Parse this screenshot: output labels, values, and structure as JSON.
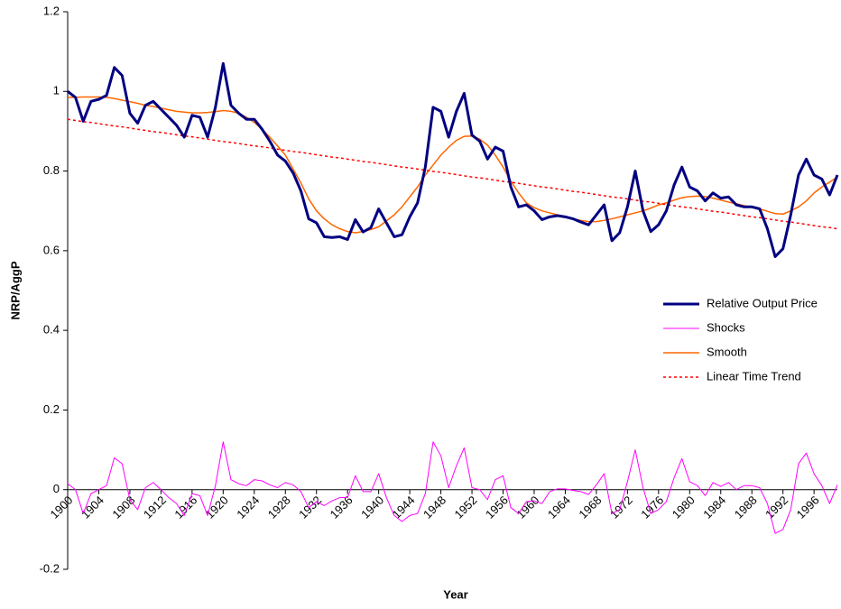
{
  "chart_data": {
    "type": "line",
    "x_label": "Year",
    "y_label": "NRP/AggP",
    "x": [
      1900,
      1901,
      1902,
      1903,
      1904,
      1905,
      1906,
      1907,
      1908,
      1909,
      1910,
      1911,
      1912,
      1913,
      1914,
      1915,
      1916,
      1917,
      1918,
      1919,
      1920,
      1921,
      1922,
      1923,
      1924,
      1925,
      1926,
      1927,
      1928,
      1929,
      1930,
      1931,
      1932,
      1933,
      1934,
      1935,
      1936,
      1937,
      1938,
      1939,
      1940,
      1941,
      1942,
      1943,
      1944,
      1945,
      1946,
      1947,
      1948,
      1949,
      1950,
      1951,
      1952,
      1953,
      1954,
      1955,
      1956,
      1957,
      1958,
      1959,
      1960,
      1961,
      1962,
      1963,
      1964,
      1965,
      1966,
      1967,
      1968,
      1969,
      1970,
      1971,
      1972,
      1973,
      1974,
      1975,
      1976,
      1977,
      1978,
      1979,
      1980,
      1981,
      1982,
      1983,
      1984,
      1985,
      1986,
      1987,
      1988,
      1989,
      1990,
      1991,
      1992,
      1993,
      1994,
      1995,
      1996,
      1997,
      1998,
      1999
    ],
    "xlim": [
      1900,
      1999
    ],
    "xticks": [
      1900,
      1904,
      1908,
      1912,
      1916,
      1920,
      1924,
      1928,
      1932,
      1936,
      1940,
      1944,
      1948,
      1952,
      1956,
      1960,
      1964,
      1968,
      1972,
      1976,
      1980,
      1984,
      1988,
      1992,
      1996
    ],
    "ylim": [
      -0.2,
      1.2
    ],
    "yticks": [
      -0.2,
      0,
      0.2,
      0.4,
      0.6,
      0.8,
      1,
      1.2
    ],
    "grid": false,
    "legend": "right",
    "series": [
      {
        "name": "Relative Output Price",
        "color": "#000080",
        "line_style": "solid",
        "linewidth": 3,
        "values": [
          1.0,
          0.985,
          0.925,
          0.975,
          0.98,
          0.99,
          1.06,
          1.04,
          0.945,
          0.92,
          0.965,
          0.975,
          0.955,
          0.935,
          0.915,
          0.885,
          0.94,
          0.935,
          0.885,
          0.96,
          1.07,
          0.965,
          0.945,
          0.93,
          0.93,
          0.905,
          0.875,
          0.84,
          0.825,
          0.795,
          0.75,
          0.68,
          0.67,
          0.635,
          0.633,
          0.635,
          0.628,
          0.678,
          0.647,
          0.658,
          0.705,
          0.67,
          0.635,
          0.64,
          0.685,
          0.72,
          0.81,
          0.96,
          0.95,
          0.885,
          0.95,
          0.995,
          0.89,
          0.875,
          0.83,
          0.86,
          0.85,
          0.76,
          0.71,
          0.715,
          0.7,
          0.678,
          0.685,
          0.688,
          0.685,
          0.68,
          0.672,
          0.665,
          0.69,
          0.715,
          0.625,
          0.645,
          0.71,
          0.8,
          0.7,
          0.648,
          0.665,
          0.7,
          0.765,
          0.81,
          0.76,
          0.75,
          0.725,
          0.745,
          0.732,
          0.735,
          0.715,
          0.71,
          0.71,
          0.705,
          0.655,
          0.585,
          0.605,
          0.69,
          0.79,
          0.83,
          0.79,
          0.78,
          0.74,
          0.79
        ]
      },
      {
        "name": "Shocks",
        "color": "#ff00ff",
        "line_style": "solid",
        "linewidth": 1,
        "values": [
          0.015,
          0.0,
          -0.06,
          -0.01,
          0.0,
          0.01,
          0.08,
          0.065,
          -0.025,
          -0.05,
          0.005,
          0.018,
          0.0,
          -0.02,
          -0.035,
          -0.065,
          -0.01,
          -0.015,
          -0.065,
          0.01,
          0.12,
          0.025,
          0.015,
          0.01,
          0.025,
          0.022,
          0.012,
          0.005,
          0.018,
          0.012,
          -0.005,
          -0.045,
          -0.03,
          -0.04,
          -0.028,
          -0.02,
          -0.02,
          0.035,
          -0.005,
          -0.005,
          0.04,
          -0.02,
          -0.065,
          -0.08,
          -0.065,
          -0.06,
          -0.01,
          0.12,
          0.085,
          0.005,
          0.06,
          0.105,
          0.005,
          0.0,
          -0.025,
          0.025,
          0.035,
          -0.045,
          -0.06,
          -0.03,
          -0.028,
          -0.035,
          -0.005,
          0.002,
          0.002,
          -0.002,
          -0.005,
          -0.012,
          0.012,
          0.04,
          -0.06,
          -0.05,
          0.02,
          0.1,
          0.005,
          -0.06,
          -0.05,
          -0.03,
          0.03,
          0.078,
          0.02,
          0.01,
          -0.015,
          0.018,
          0.008,
          0.018,
          0.0,
          0.01,
          0.01,
          0.005,
          -0.035,
          -0.11,
          -0.1,
          -0.05,
          0.065,
          0.092,
          0.04,
          0.01,
          -0.035,
          0.012
        ]
      },
      {
        "name": "Smooth",
        "color": "#ff6600",
        "line_style": "solid",
        "linewidth": 1.5,
        "values": [
          0.985,
          0.985,
          0.986,
          0.986,
          0.986,
          0.985,
          0.982,
          0.978,
          0.974,
          0.97,
          0.965,
          0.962,
          0.958,
          0.954,
          0.95,
          0.948,
          0.946,
          0.946,
          0.947,
          0.949,
          0.952,
          0.95,
          0.945,
          0.935,
          0.922,
          0.905,
          0.885,
          0.863,
          0.84,
          0.805,
          0.77,
          0.73,
          0.7,
          0.68,
          0.665,
          0.655,
          0.648,
          0.645,
          0.648,
          0.653,
          0.66,
          0.675,
          0.69,
          0.71,
          0.735,
          0.76,
          0.79,
          0.815,
          0.84,
          0.86,
          0.877,
          0.887,
          0.888,
          0.88,
          0.865,
          0.84,
          0.81,
          0.775,
          0.745,
          0.72,
          0.708,
          0.7,
          0.695,
          0.69,
          0.685,
          0.68,
          0.676,
          0.673,
          0.673,
          0.676,
          0.68,
          0.685,
          0.69,
          0.695,
          0.7,
          0.707,
          0.715,
          0.72,
          0.727,
          0.733,
          0.736,
          0.737,
          0.736,
          0.732,
          0.727,
          0.722,
          0.718,
          0.713,
          0.709,
          0.705,
          0.699,
          0.693,
          0.692,
          0.7,
          0.71,
          0.725,
          0.745,
          0.76,
          0.772,
          0.785
        ]
      },
      {
        "name": "Linear Time Trend",
        "color": "#ff0000",
        "line_style": "dotted",
        "linewidth": 1.5,
        "values": [
          0.93,
          0.927,
          0.924,
          0.922,
          0.919,
          0.916,
          0.913,
          0.911,
          0.908,
          0.905,
          0.902,
          0.899,
          0.897,
          0.894,
          0.891,
          0.888,
          0.886,
          0.883,
          0.88,
          0.877,
          0.874,
          0.872,
          0.869,
          0.866,
          0.863,
          0.861,
          0.858,
          0.855,
          0.852,
          0.849,
          0.847,
          0.844,
          0.841,
          0.838,
          0.835,
          0.833,
          0.83,
          0.827,
          0.824,
          0.822,
          0.819,
          0.816,
          0.813,
          0.81,
          0.808,
          0.805,
          0.802,
          0.799,
          0.797,
          0.794,
          0.791,
          0.788,
          0.785,
          0.783,
          0.78,
          0.777,
          0.774,
          0.772,
          0.769,
          0.766,
          0.763,
          0.76,
          0.758,
          0.755,
          0.752,
          0.749,
          0.747,
          0.744,
          0.741,
          0.738,
          0.735,
          0.733,
          0.73,
          0.727,
          0.724,
          0.722,
          0.719,
          0.716,
          0.713,
          0.71,
          0.708,
          0.705,
          0.702,
          0.699,
          0.697,
          0.694,
          0.691,
          0.688,
          0.685,
          0.683,
          0.68,
          0.677,
          0.674,
          0.672,
          0.669,
          0.666,
          0.663,
          0.66,
          0.658,
          0.655
        ]
      }
    ]
  }
}
